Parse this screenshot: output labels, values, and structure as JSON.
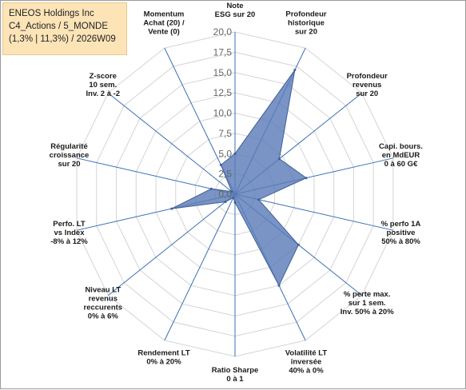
{
  "title_box": {
    "line1": "ENEOS Holdings Inc",
    "line2": "C4_Actions / 5_MONDE",
    "line3": "(1,3% | 11,3%) / 2026W09"
  },
  "chart_data": {
    "type": "radar",
    "rmin": 0,
    "rmax": 20,
    "ticks": [
      "0,0",
      "2,5",
      "5,0",
      "7,5",
      "10,0",
      "12,5",
      "15,0",
      "17,5",
      "20,0"
    ],
    "tick_values": [
      0,
      2.5,
      5,
      7.5,
      10,
      12.5,
      15,
      17.5,
      20
    ],
    "axes": [
      [
        "Note",
        "ESG sur 20"
      ],
      [
        "Profondeur",
        "historique",
        "sur 20"
      ],
      [
        "Profondeur",
        "revenus",
        "sur 20"
      ],
      [
        "Capi. bours.",
        "en MdEUR",
        "0 à 60 G€"
      ],
      [
        "% perfo 1A",
        "positive",
        "50% à 80%"
      ],
      [
        "% perte max.",
        "sur 1 sem.",
        "Inv. 50% à 20%"
      ],
      [
        "Volatilité LT",
        "inversée",
        "40% à 0%"
      ],
      [
        "Ratio Sharpe",
        "0 à 1"
      ],
      [
        "Rendement LT",
        "0% à 20%"
      ],
      [
        "Niveau LT",
        "revenus",
        "reccurents",
        "0% à 6%"
      ],
      [
        "Perfo. LT",
        "vs Index",
        "-8% à 12%"
      ],
      [
        "Régularité",
        "croissance",
        "sur 20"
      ],
      [
        "Z-score",
        "10 sem.",
        "Inv. 2 à -2"
      ],
      [
        "Momentum",
        "Achat (20) /",
        "Vente (0)"
      ]
    ],
    "values": [
      5,
      17,
      7,
      9,
      3,
      10,
      12.5,
      1,
      0.5,
      1.5,
      8,
      3,
      0.5,
      4
    ],
    "series_color": "#5b7db8",
    "grid": true
  }
}
